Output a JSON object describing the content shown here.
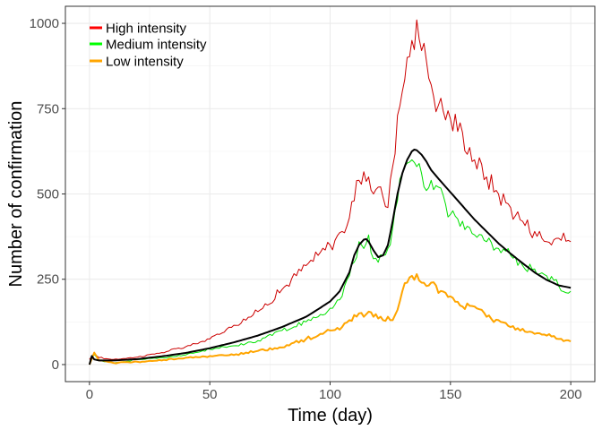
{
  "chart_data": {
    "type": "line",
    "xlabel": "Time (day)",
    "ylabel": "Number of confirmation",
    "xlim": [
      -10,
      210
    ],
    "ylim": [
      -50,
      1050
    ],
    "x_ticks": [
      0,
      50,
      100,
      150,
      200
    ],
    "y_ticks": [
      0,
      250,
      500,
      750,
      1000
    ],
    "grid": true,
    "legend_position": "top-left",
    "series": [
      {
        "name": "High intensity",
        "color": "#cc0000",
        "stroke_width": 1,
        "legend": true,
        "x": [
          0,
          2,
          4,
          10,
          20,
          30,
          40,
          50,
          60,
          70,
          80,
          90,
          95,
          100,
          105,
          108,
          110,
          112,
          114,
          116,
          118,
          120,
          122,
          124,
          126,
          128,
          130,
          132,
          134,
          136,
          138,
          140,
          142,
          145,
          150,
          155,
          160,
          165,
          170,
          175,
          180,
          185,
          190,
          195,
          200
        ],
        "y": [
          15,
          32,
          20,
          15,
          22,
          35,
          52,
          75,
          115,
          155,
          220,
          290,
          320,
          350,
          390,
          430,
          480,
          540,
          565,
          550,
          500,
          520,
          490,
          460,
          580,
          730,
          800,
          900,
          950,
          1010,
          920,
          890,
          820,
          760,
          720,
          680,
          600,
          550,
          500,
          460,
          420,
          390,
          360,
          370,
          360
        ]
      },
      {
        "name": "Medium intensity",
        "color": "#00e000",
        "stroke_width": 1,
        "legend": true,
        "x": [
          0,
          2,
          4,
          10,
          20,
          30,
          40,
          50,
          60,
          70,
          80,
          90,
          95,
          100,
          105,
          108,
          110,
          112,
          114,
          116,
          118,
          120,
          122,
          124,
          126,
          128,
          130,
          132,
          134,
          136,
          138,
          140,
          142,
          145,
          150,
          155,
          160,
          165,
          170,
          175,
          180,
          185,
          190,
          195,
          200
        ],
        "y": [
          5,
          30,
          12,
          5,
          15,
          20,
          28,
          45,
          55,
          70,
          100,
          125,
          140,
          165,
          200,
          260,
          300,
          360,
          340,
          380,
          310,
          300,
          320,
          340,
          400,
          480,
          560,
          590,
          600,
          580,
          560,
          510,
          540,
          520,
          440,
          420,
          380,
          360,
          340,
          320,
          290,
          280,
          260,
          230,
          215
        ]
      },
      {
        "name": "Low intensity",
        "color": "#ffa500",
        "stroke_width": 2,
        "legend": true,
        "x": [
          0,
          2,
          4,
          10,
          20,
          30,
          40,
          50,
          60,
          70,
          80,
          90,
          95,
          100,
          105,
          108,
          110,
          112,
          114,
          116,
          118,
          120,
          122,
          124,
          126,
          128,
          130,
          132,
          134,
          136,
          138,
          140,
          142,
          145,
          150,
          155,
          160,
          165,
          170,
          175,
          180,
          185,
          190,
          195,
          200
        ],
        "y": [
          0,
          35,
          12,
          5,
          8,
          12,
          20,
          25,
          28,
          40,
          50,
          75,
          85,
          100,
          110,
          130,
          145,
          150,
          140,
          155,
          140,
          135,
          130,
          140,
          130,
          160,
          215,
          240,
          260,
          265,
          240,
          230,
          240,
          210,
          200,
          170,
          170,
          140,
          130,
          110,
          105,
          90,
          85,
          75,
          68
        ]
      },
      {
        "name": "",
        "color": "#000000",
        "stroke_width": 2,
        "legend": false,
        "x": [
          0,
          1,
          2,
          4,
          10,
          20,
          30,
          40,
          50,
          60,
          70,
          80,
          90,
          95,
          100,
          104,
          108,
          110,
          112,
          114,
          115,
          116,
          118,
          120,
          122,
          124,
          126,
          128,
          130,
          132,
          134,
          135,
          136,
          138,
          140,
          142,
          145,
          150,
          155,
          160,
          165,
          170,
          175,
          180,
          185,
          190,
          195,
          200
        ],
        "y": [
          0,
          25,
          15,
          12,
          12,
          16,
          24,
          34,
          48,
          65,
          85,
          110,
          140,
          162,
          185,
          215,
          270,
          320,
          350,
          366,
          368,
          360,
          335,
          315,
          320,
          350,
          420,
          500,
          560,
          600,
          625,
          630,
          628,
          615,
          595,
          570,
          545,
          505,
          465,
          425,
          390,
          355,
          325,
          297,
          270,
          248,
          232,
          225
        ]
      }
    ]
  }
}
